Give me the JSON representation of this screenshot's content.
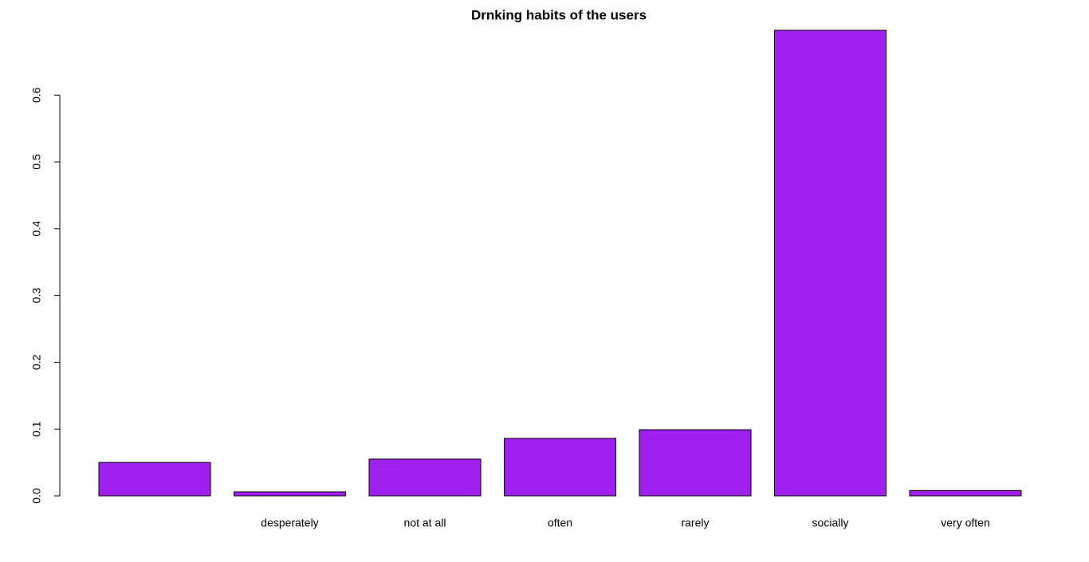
{
  "chart_data": {
    "type": "bar",
    "title": "Drnking habits of the users",
    "categories": [
      null,
      "desperately",
      "not at all",
      "often",
      "rarely",
      "socially",
      "very often"
    ],
    "values": [
      0.05,
      0.006,
      0.055,
      0.086,
      0.099,
      0.697,
      0.008
    ],
    "color": "#a020f0",
    "ylim": [
      0,
      0.697
    ],
    "yticks": [
      {
        "value": 0,
        "label": "0.0"
      },
      0.1,
      0.2,
      0.3,
      0.4,
      0.5,
      0.6
    ],
    "grid": false
  }
}
